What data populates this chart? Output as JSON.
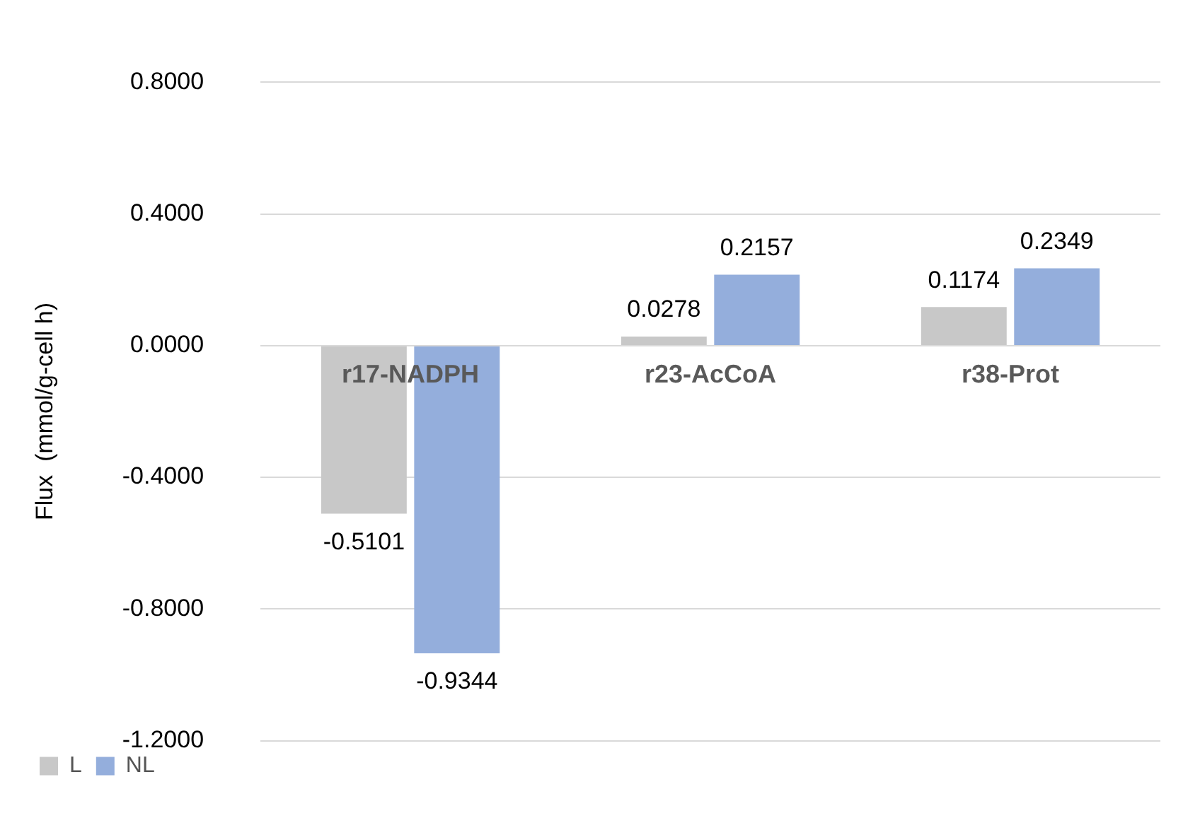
{
  "chart_data": {
    "type": "bar",
    "ylabel": "Flux  (mmol/g-cell h)",
    "categories": [
      "r17-NADPH",
      "r23-AcCoA",
      "r38-Prot"
    ],
    "series": [
      {
        "name": "L",
        "color": "#c8c8c8",
        "values": [
          -0.5101,
          0.0278,
          0.1174
        ]
      },
      {
        "name": "NL",
        "color": "#94aedc",
        "values": [
          -0.9344,
          0.2157,
          0.2349
        ]
      }
    ],
    "ylim": [
      -1.2,
      0.8
    ],
    "yticks": [
      {
        "value": -1.2,
        "label": "-1.2000"
      },
      {
        "value": -0.8,
        "label": "-0.8000"
      },
      {
        "value": -0.4,
        "label": "-0.4000"
      },
      {
        "value": 0,
        "label": "0.0000"
      },
      {
        "value": 0.4,
        "label": "0.4000"
      },
      {
        "value": 0.8,
        "label": "0.8000"
      }
    ],
    "grid": "y",
    "legend": "bottom left",
    "data_labels": true
  }
}
